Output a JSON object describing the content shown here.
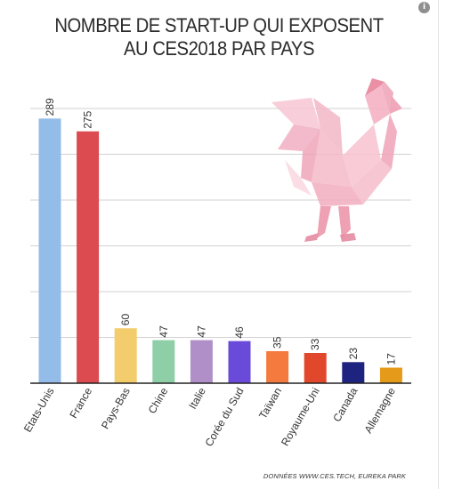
{
  "chart_data": {
    "type": "bar",
    "title_lines": [
      "NOMBRE DE START-UP QUI EXPOSENT",
      "AU CES2018  PAR PAYS"
    ],
    "categories": [
      "Etats-Unis",
      "France",
      "Pays-Bas",
      "Chine",
      "Italie",
      "Corée du Sud",
      "Taïwan",
      "Royaume-Uni",
      "Canada",
      "Allemagne"
    ],
    "values": [
      289,
      275,
      60,
      47,
      47,
      46,
      35,
      33,
      23,
      17
    ],
    "colors": [
      "#93bde8",
      "#dc4b4f",
      "#f3cd6c",
      "#8fcfa8",
      "#b08fc9",
      "#6a4bd9",
      "#f47a3e",
      "#e0472b",
      "#1f2380",
      "#e59a1a"
    ],
    "xlabel": "",
    "ylabel": "",
    "ylim": [
      0,
      300
    ],
    "gridlines": true,
    "legend": "none"
  },
  "source": "DONNÉES WWW.CES.TECH,  EUREKA PARK",
  "info_icon": "i",
  "decoration": "rooster-illustration"
}
